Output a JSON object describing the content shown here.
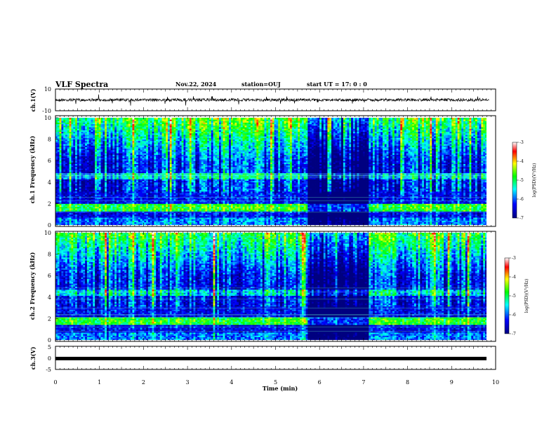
{
  "header": {
    "title": "VLF Spectra",
    "date": "Nov.22, 2024",
    "station": "station=OUJ",
    "start": "start  UT =   17: 0  : 0"
  },
  "chart_data": [
    {
      "type": "line",
      "panel": "ch1-waveform",
      "ylabel": "ch.1(V)",
      "ylim": [
        -10,
        10
      ],
      "y_ticks": [
        "10",
        "-10"
      ],
      "baseline": 0,
      "x_range_min": [
        0,
        9.85
      ]
    },
    {
      "type": "heatmap",
      "panel": "ch1-spectrogram",
      "ylabel": "ch.1 Frequency (kHz)",
      "ylim": [
        0,
        10
      ],
      "y_ticks": [
        "0",
        "2",
        "4",
        "6",
        "8",
        "10"
      ],
      "xlim": [
        0,
        10
      ],
      "data_extent_min": [
        0,
        9.85
      ],
      "colorbar": {
        "label": "log(PSD)(V²/Hz)",
        "range": [
          -7,
          -3
        ],
        "ticks": [
          "-3",
          "-4",
          "-5",
          "-6",
          "-7"
        ]
      },
      "features": [
        {
          "desc": "emission band",
          "freq_khz": 1.6
        },
        {
          "desc": "emission band",
          "freq_khz": 4.5
        },
        {
          "desc": "quiet interval",
          "time_min": [
            5.7,
            7.1
          ],
          "freq_khz": [
            0,
            10
          ]
        }
      ]
    },
    {
      "type": "heatmap",
      "panel": "ch2-spectrogram",
      "ylabel": "ch.2 Frequency (kHz)",
      "ylim": [
        0,
        10
      ],
      "y_ticks": [
        "0",
        "2",
        "4",
        "6",
        "8",
        "10"
      ],
      "xlim": [
        0,
        10
      ],
      "data_extent_min": [
        0,
        9.85
      ],
      "colorbar": {
        "label": "log(PSD)(V²/Hz)",
        "range": [
          -7,
          -3
        ],
        "ticks": [
          "-3",
          "-4",
          "-5",
          "-6",
          "-7"
        ]
      },
      "features": [
        {
          "desc": "emission band",
          "freq_khz": 1.7
        },
        {
          "desc": "emission band",
          "freq_khz": 4.4
        },
        {
          "desc": "quiet interval",
          "time_min": [
            5.7,
            7.1
          ],
          "freq_khz": [
            0,
            10
          ]
        }
      ]
    },
    {
      "type": "line",
      "panel": "ch3-waveform",
      "ylabel": "ch.3(V)",
      "ylim": [
        -5,
        5
      ],
      "y_ticks": [
        "5",
        "0",
        "-5"
      ],
      "baseline": 0,
      "x_range_min": [
        0,
        9.85
      ]
    }
  ],
  "x_axis": {
    "label": "Time  (min)",
    "range": [
      0,
      10
    ],
    "ticks": [
      "0",
      "1",
      "2",
      "3",
      "4",
      "5",
      "6",
      "7",
      "8",
      "9",
      "10"
    ]
  },
  "colors": {
    "colormap": [
      "#000080",
      "#0000ff",
      "#00ffff",
      "#00ff00",
      "#ffff00",
      "#ff0000",
      "#ffffff"
    ],
    "frame": "#000000"
  }
}
